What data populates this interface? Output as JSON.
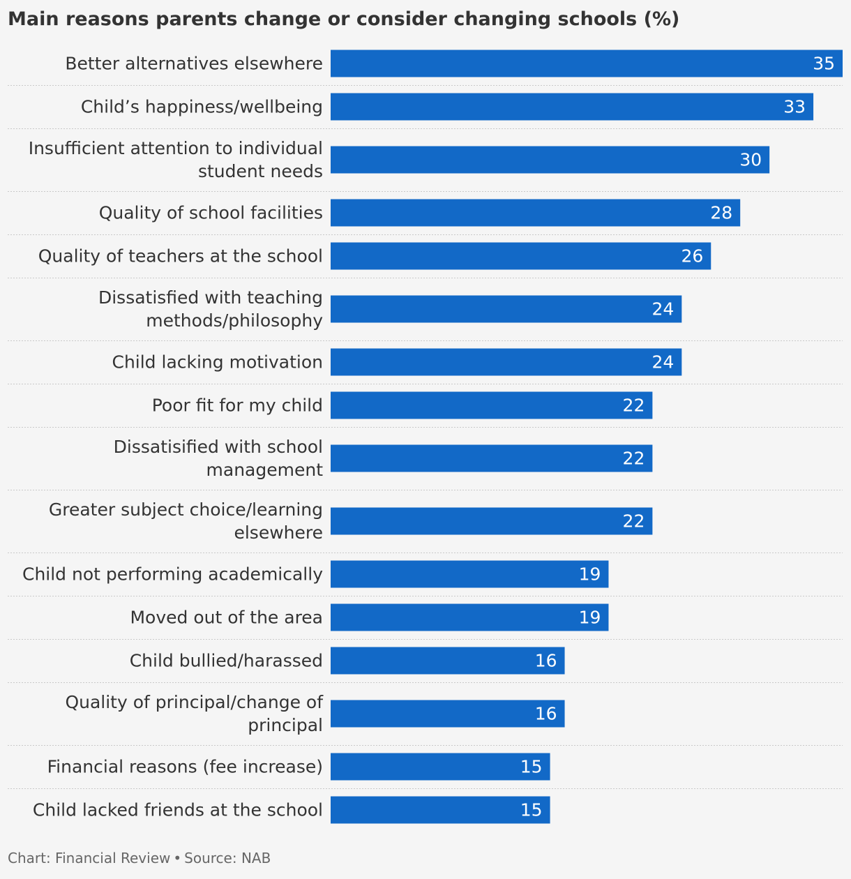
{
  "chart_data": {
    "type": "bar",
    "orientation": "horizontal",
    "title": "Main reasons parents change or consider changing schools (%)",
    "categories": [
      "Better alternatives elsewhere",
      "Child’s happiness/wellbeing",
      "Insufficient attention to individual student needs",
      "Quality of school facilities",
      "Quality of teachers at the school",
      "Dissatisfied with teaching methods/philosophy",
      "Child lacking motivation",
      "Poor fit for my child",
      "Dissatisified with school management",
      "Greater subject choice/learning elsewhere",
      "Child not performing academically",
      "Moved out of the area",
      "Child bullied/harassed",
      "Quality of principal/change of principal",
      "Financial reasons (fee increase)",
      "Child lacked friends at the school"
    ],
    "category_lines": [
      [
        "Better alternatives elsewhere"
      ],
      [
        "Child’s happiness/wellbeing"
      ],
      [
        "Insufficient attention to individual",
        "student needs"
      ],
      [
        "Quality of school facilities"
      ],
      [
        "Quality of teachers at the school"
      ],
      [
        "Dissatisfied with teaching",
        "methods/philosophy"
      ],
      [
        "Child lacking motivation"
      ],
      [
        "Poor fit for my child"
      ],
      [
        "Dissatisified with school",
        "management"
      ],
      [
        "Greater subject choice/learning",
        "elsewhere"
      ],
      [
        "Child not performing academically"
      ],
      [
        "Moved out of the area"
      ],
      [
        "Child bullied/harassed"
      ],
      [
        "Quality of principal/change of",
        "principal"
      ],
      [
        "Financial reasons (fee increase)"
      ],
      [
        "Child lacked friends at the school"
      ]
    ],
    "values": [
      35,
      33,
      30,
      28,
      26,
      24,
      24,
      22,
      22,
      22,
      19,
      19,
      16,
      16,
      15,
      15
    ],
    "xlim": [
      0,
      35
    ],
    "bar_color": "#1269c7",
    "value_label_color": "#ffffff",
    "separator_color": "#c9c9c9",
    "grid": false,
    "legend": false
  },
  "footer": {
    "chart_credit": "Chart: Financial Review",
    "separator": "•",
    "source": "Source: NAB"
  }
}
